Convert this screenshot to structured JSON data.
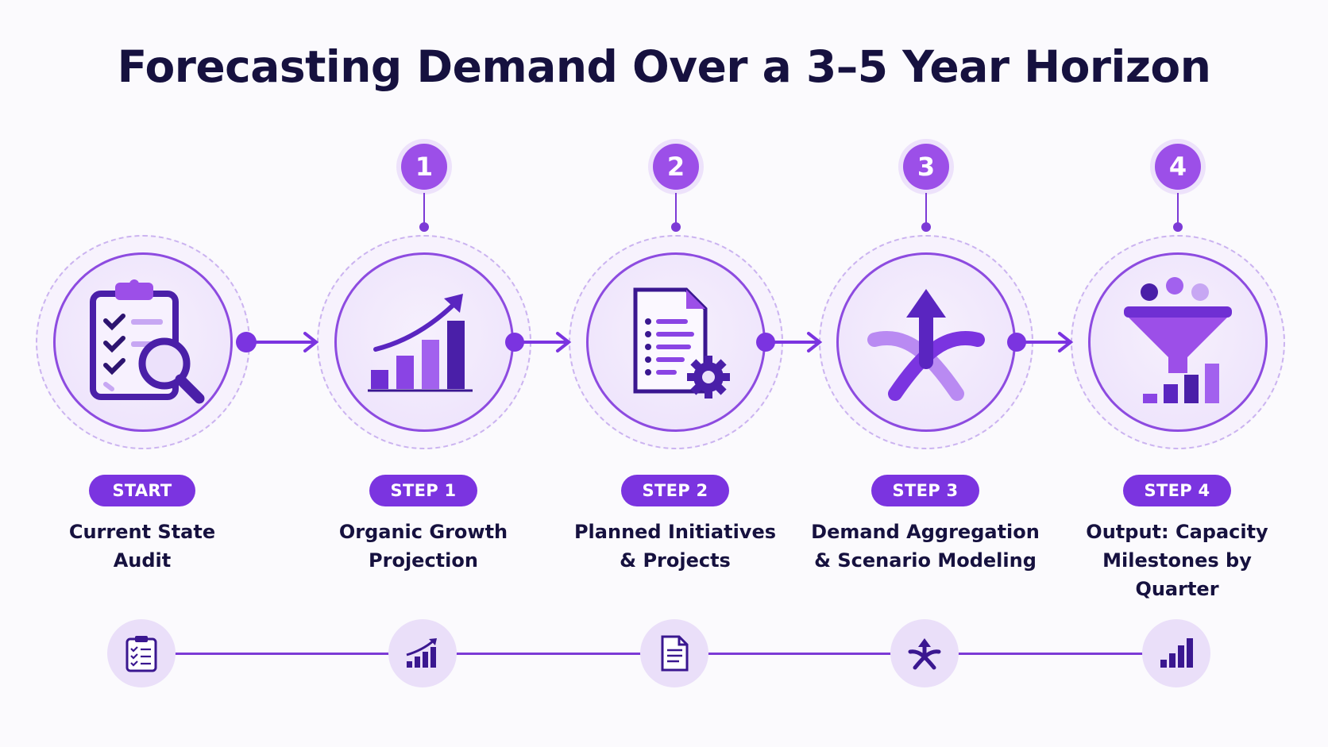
{
  "title": "Forecasting Demand Over a 3–5 Year Horizon",
  "accent_color": "#7b34e0",
  "steps": [
    {
      "badge": "",
      "pill": "START",
      "label_line1": "Current State",
      "label_line2": "Audit",
      "icon": "clipboard-search-icon",
      "mini_icon": "checklist-icon"
    },
    {
      "badge": "1",
      "pill": "STEP 1",
      "label_line1": "Organic Growth",
      "label_line2": "Projection",
      "icon": "growth-chart-icon",
      "mini_icon": "growth-chart-icon"
    },
    {
      "badge": "2",
      "pill": "STEP 2",
      "label_line1": "Planned Initiatives",
      "label_line2": "& Projects",
      "icon": "document-gear-icon",
      "mini_icon": "document-icon"
    },
    {
      "badge": "3",
      "pill": "STEP 3",
      "label_line1": "Demand Aggregation",
      "label_line2": "& Scenario Modeling",
      "icon": "merge-arrow-icon",
      "mini_icon": "merge-arrow-icon"
    },
    {
      "badge": "4",
      "pill": "STEP 4",
      "label_line1": "Output: Capacity",
      "label_line2": "Milestones by Quarter",
      "icon": "funnel-bars-icon",
      "mini_icon": "bar-chart-icon"
    }
  ]
}
